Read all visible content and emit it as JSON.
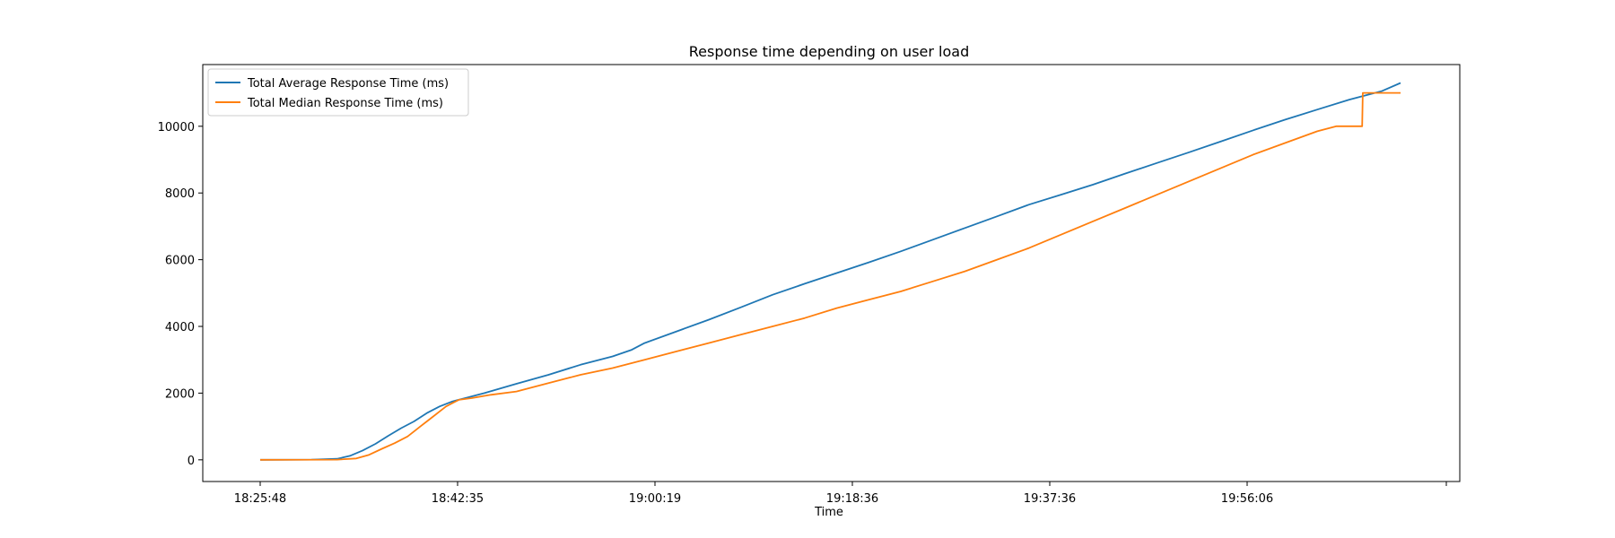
{
  "chart_data": {
    "type": "line",
    "title": "Response time depending on user load",
    "xlabel": "Time",
    "ylabel": "",
    "x_tick_labels": [
      "18:25:48",
      "18:42:35",
      "19:00:19",
      "19:18:36",
      "19:37:36",
      "19:56:06",
      ""
    ],
    "y_tick_labels": [
      "0",
      "2000",
      "4000",
      "6000",
      "8000",
      "10000"
    ],
    "ylim": [
      -650,
      11850
    ],
    "y_ticks": [
      0,
      2000,
      4000,
      6000,
      8000,
      10000
    ],
    "legend_position": "upper left",
    "grid": false,
    "series": [
      {
        "name": "Total Average Response Time (ms)",
        "color": "#1f77b4",
        "points": [
          [
            0.0,
            0
          ],
          [
            8.0,
            5
          ],
          [
            12.0,
            30
          ],
          [
            14.0,
            120
          ],
          [
            16.0,
            280
          ],
          [
            18.0,
            480
          ],
          [
            20.0,
            720
          ],
          [
            22.0,
            950
          ],
          [
            24.0,
            1150
          ],
          [
            26.0,
            1400
          ],
          [
            28.0,
            1600
          ],
          [
            30.0,
            1750
          ],
          [
            32.0,
            1850
          ],
          [
            35.0,
            2000
          ],
          [
            40.0,
            2280
          ],
          [
            45.0,
            2550
          ],
          [
            50.0,
            2850
          ],
          [
            55.0,
            3100
          ],
          [
            58.0,
            3300
          ],
          [
            60.0,
            3500
          ],
          [
            65.0,
            3850
          ],
          [
            70.0,
            4200
          ],
          [
            75.0,
            4570
          ],
          [
            80.0,
            4950
          ],
          [
            85.0,
            5280
          ],
          [
            90.0,
            5600
          ],
          [
            95.0,
            5920
          ],
          [
            100.0,
            6250
          ],
          [
            105.0,
            6600
          ],
          [
            110.0,
            6950
          ],
          [
            115.0,
            7300
          ],
          [
            120.0,
            7650
          ],
          [
            125.0,
            7950
          ],
          [
            130.0,
            8250
          ],
          [
            135.0,
            8580
          ],
          [
            140.0,
            8900
          ],
          [
            145.0,
            9220
          ],
          [
            150.0,
            9550
          ],
          [
            155.0,
            9880
          ],
          [
            160.0,
            10200
          ],
          [
            165.0,
            10500
          ],
          [
            170.0,
            10800
          ],
          [
            175.0,
            11050
          ],
          [
            178.0,
            11300
          ]
        ]
      },
      {
        "name": "Total Median Response Time (ms)",
        "color": "#ff7f0e",
        "points": [
          [
            0.0,
            0
          ],
          [
            12.0,
            5
          ],
          [
            15.0,
            40
          ],
          [
            17.0,
            150
          ],
          [
            19.0,
            330
          ],
          [
            21.0,
            500
          ],
          [
            23.0,
            700
          ],
          [
            24.0,
            850
          ],
          [
            25.0,
            1000
          ],
          [
            26.0,
            1150
          ],
          [
            27.0,
            1300
          ],
          [
            28.0,
            1450
          ],
          [
            29.0,
            1600
          ],
          [
            30.0,
            1700
          ],
          [
            31.0,
            1800
          ],
          [
            33.0,
            1850
          ],
          [
            36.0,
            1950
          ],
          [
            40.0,
            2050
          ],
          [
            45.0,
            2300
          ],
          [
            50.0,
            2550
          ],
          [
            55.0,
            2750
          ],
          [
            60.0,
            3000
          ],
          [
            65.0,
            3250
          ],
          [
            70.0,
            3500
          ],
          [
            75.0,
            3750
          ],
          [
            80.0,
            4000
          ],
          [
            85.0,
            4250
          ],
          [
            90.0,
            4550
          ],
          [
            95.0,
            4800
          ],
          [
            100.0,
            5050
          ],
          [
            105.0,
            5350
          ],
          [
            110.0,
            5650
          ],
          [
            115.0,
            6000
          ],
          [
            120.0,
            6350
          ],
          [
            125.0,
            6750
          ],
          [
            130.0,
            7150
          ],
          [
            135.0,
            7550
          ],
          [
            140.0,
            7950
          ],
          [
            145.0,
            8350
          ],
          [
            150.0,
            8750
          ],
          [
            155.0,
            9150
          ],
          [
            160.0,
            9500
          ],
          [
            165.0,
            9850
          ],
          [
            168.0,
            10000
          ],
          [
            172.0,
            10000
          ],
          [
            172.1,
            11000
          ],
          [
            178.0,
            11000
          ]
        ]
      }
    ]
  }
}
